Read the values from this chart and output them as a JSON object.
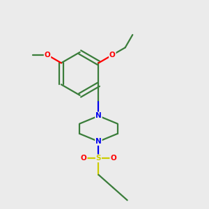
{
  "background_color": "#ebebeb",
  "bond_color": "#3a7d3a",
  "atom_colors": {
    "N": "#0000ee",
    "O": "#ff0000",
    "S": "#cccc00",
    "C": "#3a7d3a"
  },
  "figsize": [
    3.0,
    3.0
  ],
  "dpi": 100
}
